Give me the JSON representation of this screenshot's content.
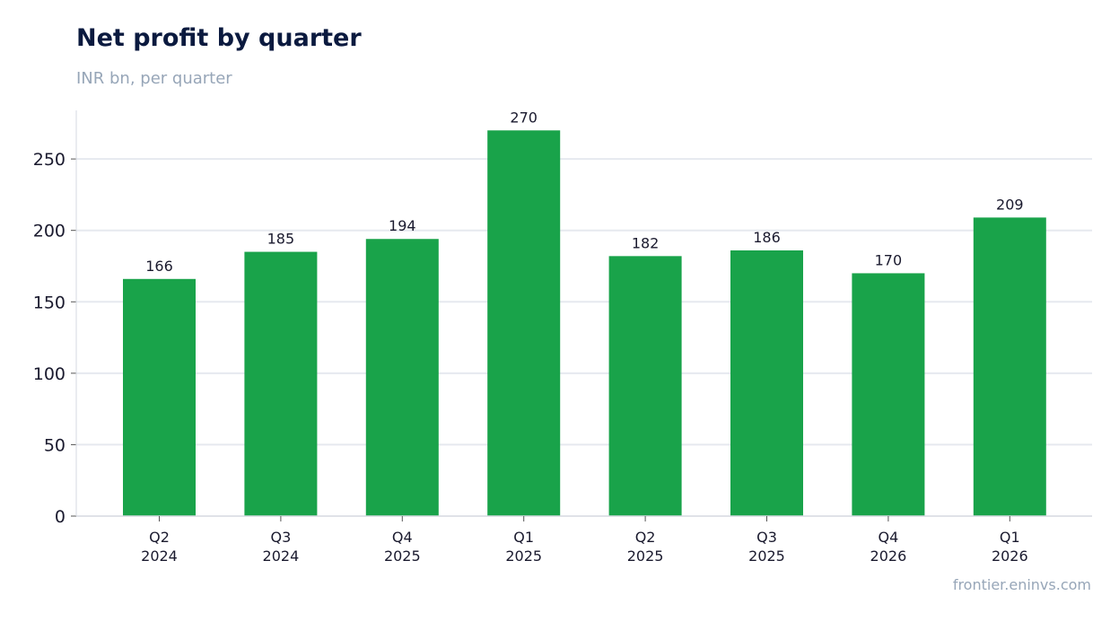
{
  "header": {
    "title": "Net profit by quarter",
    "subtitle": "INR bn, per quarter"
  },
  "footer": {
    "source": "frontier.eninvs.com"
  },
  "colors": {
    "bar": "#19a34a",
    "grid": "#e6e9ef",
    "axis": "#d5d9e0",
    "title": "#0b1a3f",
    "muted": "#97a6b8"
  },
  "chart_data": {
    "type": "bar",
    "title": "Net profit by quarter",
    "subtitle": "INR bn, per quarter",
    "categories": [
      [
        "Q2",
        "2024"
      ],
      [
        "Q3",
        "2024"
      ],
      [
        "Q4",
        "2025"
      ],
      [
        "Q1",
        "2025"
      ],
      [
        "Q2",
        "2025"
      ],
      [
        "Q3",
        "2025"
      ],
      [
        "Q4",
        "2026"
      ],
      [
        "Q1",
        "2026"
      ]
    ],
    "values": [
      166,
      185,
      194,
      270,
      182,
      186,
      170,
      209
    ],
    "yticks": [
      0,
      50,
      100,
      150,
      200,
      250
    ],
    "ylim": [
      0,
      284
    ],
    "grid": true,
    "legend": "none",
    "data_labels": true
  }
}
